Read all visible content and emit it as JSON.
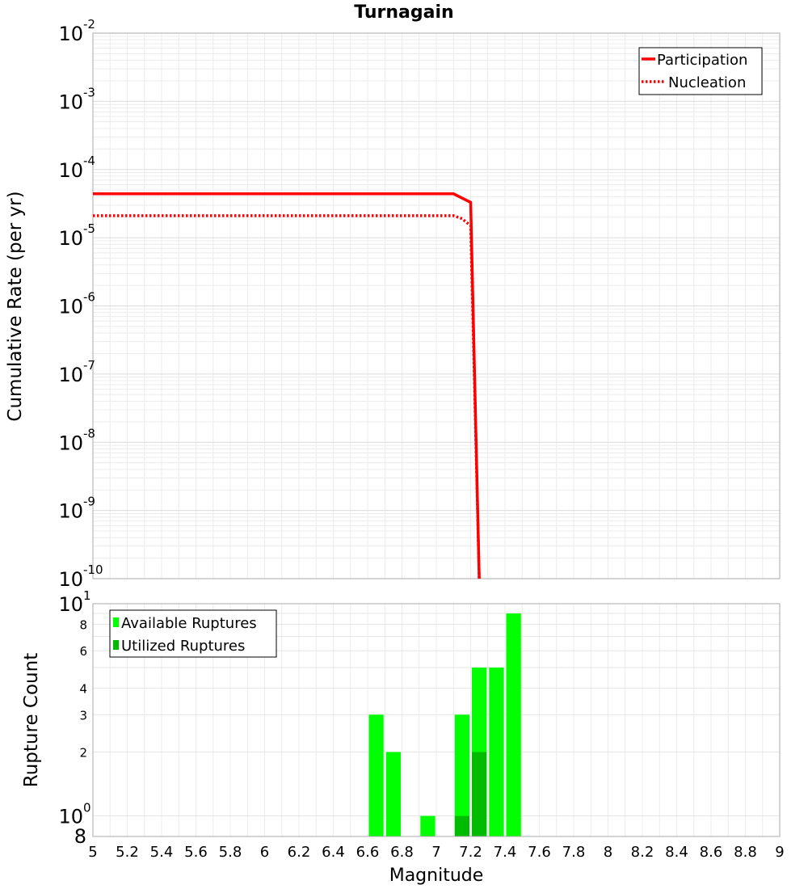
{
  "chart_data": [
    {
      "type": "line",
      "title": "Turnagain",
      "xlabel": "",
      "ylabel": "Cumulative Rate (per yr)",
      "xlim": [
        5,
        9
      ],
      "ylim": [
        1e-10,
        0.01
      ],
      "yscale": "log",
      "grid": true,
      "legend_position": "top-right",
      "y_tick_exponents": [
        "-2",
        "-3",
        "-4",
        "-5",
        "-6",
        "-7",
        "-8",
        "-9",
        "-10"
      ],
      "y_tick_base": "10",
      "series": [
        {
          "name": "Participation",
          "style": "solid",
          "color": "#ff0000",
          "x": [
            5.0,
            7.1,
            7.2,
            7.25
          ],
          "y": [
            4.4e-05,
            4.4e-05,
            3.3e-05,
            1e-10
          ]
        },
        {
          "name": "Nucleation",
          "style": "dotted",
          "color": "#ff0000",
          "x": [
            5.0,
            7.1,
            7.15,
            7.2,
            7.25
          ],
          "y": [
            2.1e-05,
            2.1e-05,
            1.9e-05,
            1.5e-05,
            1e-10
          ]
        }
      ]
    },
    {
      "type": "bar",
      "xlabel": "Magnitude",
      "ylabel": "Rupture Count",
      "xlim": [
        5,
        9
      ],
      "ylim": [
        0.8,
        10
      ],
      "yscale": "log",
      "grid": true,
      "legend_position": "top-left",
      "bin_width": 0.1,
      "x_ticks": [
        "5",
        "5.2",
        "5.4",
        "5.6",
        "5.8",
        "6",
        "6.2",
        "6.4",
        "6.6",
        "6.8",
        "7",
        "7.2",
        "7.4",
        "7.6",
        "7.8",
        "8",
        "8.2",
        "8.4",
        "8.6",
        "8.8",
        "9"
      ],
      "y_ticks_minor": [
        "8",
        "6",
        "4",
        "3",
        "2"
      ],
      "y_tick_decades": [
        {
          "base": "10",
          "exp": "1",
          "bottom_label": "8"
        },
        {
          "base": "10",
          "exp": "0",
          "bottom_label": "8"
        }
      ],
      "series": [
        {
          "name": "Available Ruptures",
          "color": "#00ff00",
          "x": [
            6.65,
            6.75,
            6.95,
            7.15,
            7.25,
            7.35,
            7.45
          ],
          "values": [
            3,
            2,
            1,
            3,
            5,
            5,
            9
          ]
        },
        {
          "name": "Utilized Ruptures",
          "color": "#00bb00",
          "x": [
            7.15,
            7.25
          ],
          "values": [
            1,
            2
          ]
        }
      ]
    }
  ]
}
